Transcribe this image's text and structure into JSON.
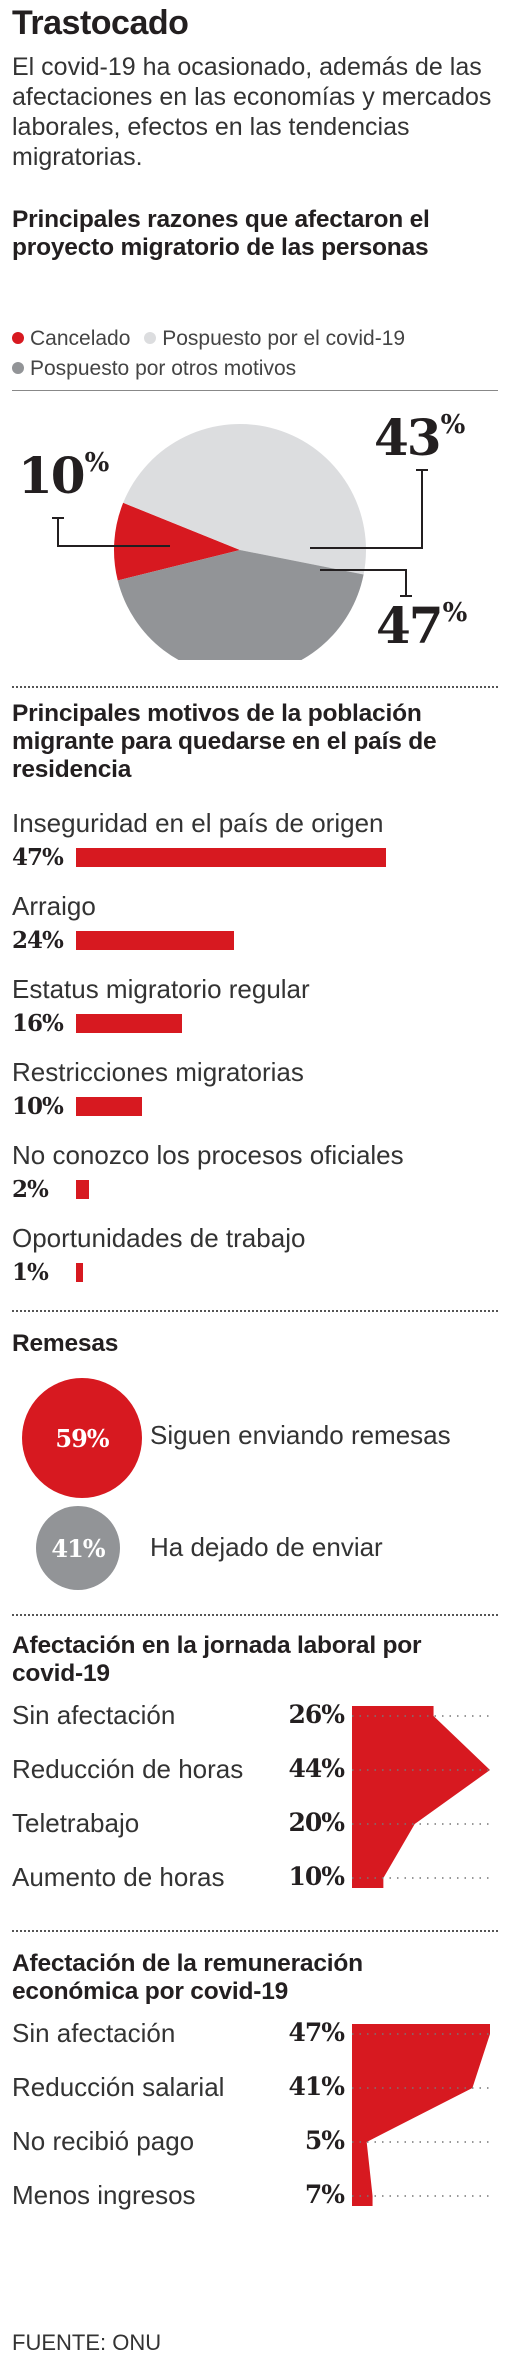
{
  "header": {
    "title": "Trastocado",
    "intro": "El covid-19 ha ocasionado, además de las afectaciones en las economías y mercados laborales, efectos en las tendencias migratorias."
  },
  "colors": {
    "red": "#d71920",
    "light_gray": "#dcdddf",
    "dark_gray": "#929497",
    "text": "#231f20"
  },
  "chart_data": [
    {
      "type": "pie",
      "title": "Principales razones que afectaron el proyecto migratorio de las personas",
      "legend_position": "top",
      "labels": [
        "Cancelado",
        "Pospuesto por el covid-19",
        "Pospuesto por otros motivos"
      ],
      "values": [
        10,
        47,
        43
      ],
      "display_labels": [
        "10",
        "47",
        "43"
      ],
      "unit": "%"
    },
    {
      "type": "bar",
      "orientation": "horizontal",
      "title": "Principales motivos de la población migrante para quedarse en el país de residencia",
      "categories": [
        "Inseguridad en el país de origen",
        "Arraigo",
        "Estatus migratorio regular",
        "Restricciones migratorias",
        "No conozco los procesos oficiales",
        "Oportunidades de trabajo"
      ],
      "values": [
        47,
        24,
        16,
        10,
        2,
        1
      ],
      "display_values": [
        "47%",
        "24%",
        "16%",
        "10%",
        "2%",
        "1%"
      ]
    },
    {
      "type": "bubble",
      "title": "Remesas",
      "labels": [
        "Siguen enviando remesas",
        "Ha dejado de enviar"
      ],
      "values": [
        59,
        41
      ],
      "display_values": [
        "59%",
        "41%"
      ]
    },
    {
      "type": "area",
      "orientation": "horizontal",
      "title": "Afectación en la jornada laboral por covid-19",
      "categories": [
        "Sin afectación",
        "Reducción de horas",
        "Teletrabajo",
        "Aumento de horas"
      ],
      "values": [
        26,
        44,
        20,
        10
      ],
      "display_values": [
        "26%",
        "44%",
        "20%",
        "10%"
      ],
      "xlim": [
        0,
        44
      ]
    },
    {
      "type": "area",
      "orientation": "horizontal",
      "title": "Afectación de la remuneración económica por covid-19",
      "categories": [
        "Sin afectación",
        "Reducción salarial",
        "No recibió pago",
        "Menos ingresos"
      ],
      "values": [
        47,
        41,
        5,
        7
      ],
      "display_values": [
        "47%",
        "41%",
        "5%",
        "7%"
      ],
      "xlim": [
        0,
        47
      ]
    }
  ],
  "source": "FUENTE: ONU"
}
